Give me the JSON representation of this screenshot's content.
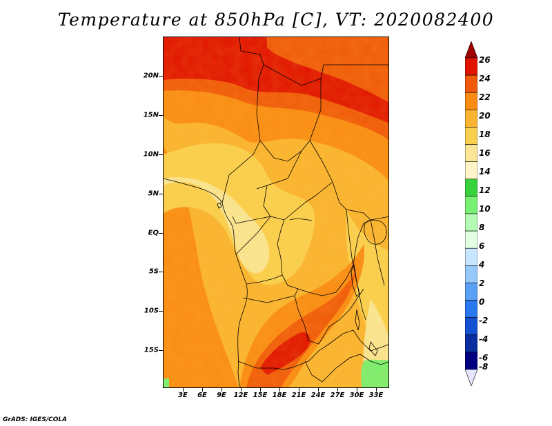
{
  "title": "Temperature at 850hPa [C], VT: 2020082400",
  "footer": "GrADS: IGES/COLA",
  "map": {
    "variable": "Temperature at 850hPa",
    "units": "C",
    "valid_time": "2020082400",
    "y_axis_labels": [
      "20N",
      "15N",
      "10N",
      "5N",
      "EQ",
      "5S",
      "10S",
      "15S"
    ],
    "x_axis_labels": [
      "3E",
      "6E",
      "9E",
      "12E",
      "15E",
      "18E",
      "21E",
      "24E",
      "27E",
      "30E",
      "33E"
    ]
  },
  "colorbar": {
    "levels": [
      "26",
      "24",
      "22",
      "20",
      "18",
      "16",
      "14",
      "12",
      "10",
      "8",
      "6",
      "4",
      "2",
      "0",
      "-2",
      "-4",
      "-6",
      "-8"
    ],
    "colors": [
      "#a00000",
      "#e11400",
      "#f05a0a",
      "#fa8c14",
      "#fab432",
      "#fad050",
      "#fae696",
      "#fff5c8",
      "#37d23c",
      "#78f073",
      "#b4fab4",
      "#e1ffe1",
      "#c8e6ff",
      "#96c8fa",
      "#5aa0f5",
      "#2878f0",
      "#1450d2",
      "#0a2da0",
      "#000080",
      "#e6e6ff"
    ]
  }
}
